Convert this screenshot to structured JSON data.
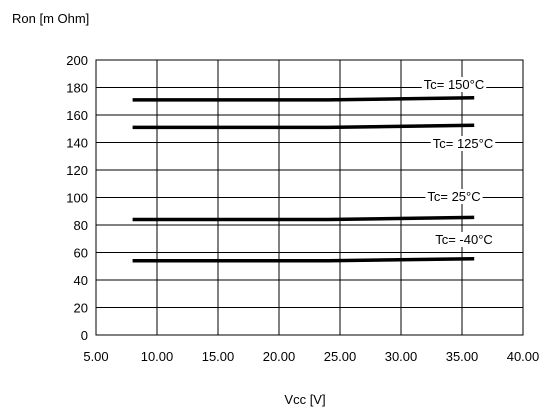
{
  "chart_data": {
    "type": "line",
    "title": "",
    "ylabel": "Ron [m Ohm]",
    "xlabel": "Vcc [V]",
    "xlim": [
      5,
      40
    ],
    "ylim": [
      0,
      200
    ],
    "x_ticks": [
      "5.00",
      "10.00",
      "15.00",
      "20.00",
      "25.00",
      "30.00",
      "35.00",
      "40.00"
    ],
    "y_ticks": [
      "0",
      "20",
      "40",
      "60",
      "80",
      "100",
      "120",
      "140",
      "160",
      "180",
      "200"
    ],
    "grid": true,
    "legend": "inline-labels",
    "series": [
      {
        "name": "Tc= 150°C",
        "x": [
          8,
          24,
          36
        ],
        "y": [
          171,
          171,
          172.5
        ]
      },
      {
        "name": "Tc= 125°C",
        "x": [
          8,
          24,
          36
        ],
        "y": [
          151,
          151,
          152.5
        ]
      },
      {
        "name": "Tc= 25°C",
        "x": [
          8,
          24,
          36
        ],
        "y": [
          84,
          84,
          85.5
        ]
      },
      {
        "name": "Tc= -40°C",
        "x": [
          8,
          24,
          36
        ],
        "y": [
          54,
          54,
          55.5
        ]
      }
    ],
    "line_color": "#000000"
  }
}
